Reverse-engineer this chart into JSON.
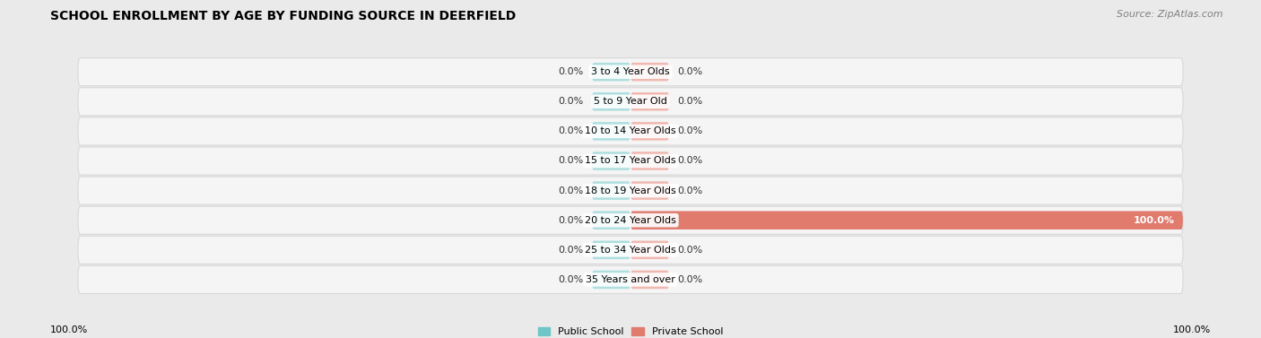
{
  "title": "SCHOOL ENROLLMENT BY AGE BY FUNDING SOURCE IN DEERFIELD",
  "source": "Source: ZipAtlas.com",
  "categories": [
    "3 to 4 Year Olds",
    "5 to 9 Year Old",
    "10 to 14 Year Olds",
    "15 to 17 Year Olds",
    "18 to 19 Year Olds",
    "20 to 24 Year Olds",
    "25 to 34 Year Olds",
    "35 Years and over"
  ],
  "public_values": [
    0.0,
    0.0,
    0.0,
    0.0,
    0.0,
    0.0,
    0.0,
    0.0
  ],
  "private_values": [
    0.0,
    0.0,
    0.0,
    0.0,
    0.0,
    100.0,
    0.0,
    0.0
  ],
  "public_color": "#6ec6c6",
  "private_color": "#e07b6e",
  "public_color_light": "#aedede",
  "private_color_light": "#f0b8b0",
  "background_color": "#eaeaea",
  "bar_bg_color": "#f5f5f5",
  "bar_bg_edge_color": "#d8d8d8",
  "placeholder_pct": 7.0,
  "x_left_label": "100.0%",
  "x_right_label": "100.0%",
  "legend_public": "Public School",
  "legend_private": "Private School",
  "title_fontsize": 10,
  "source_fontsize": 8,
  "label_fontsize": 8,
  "category_fontsize": 8
}
